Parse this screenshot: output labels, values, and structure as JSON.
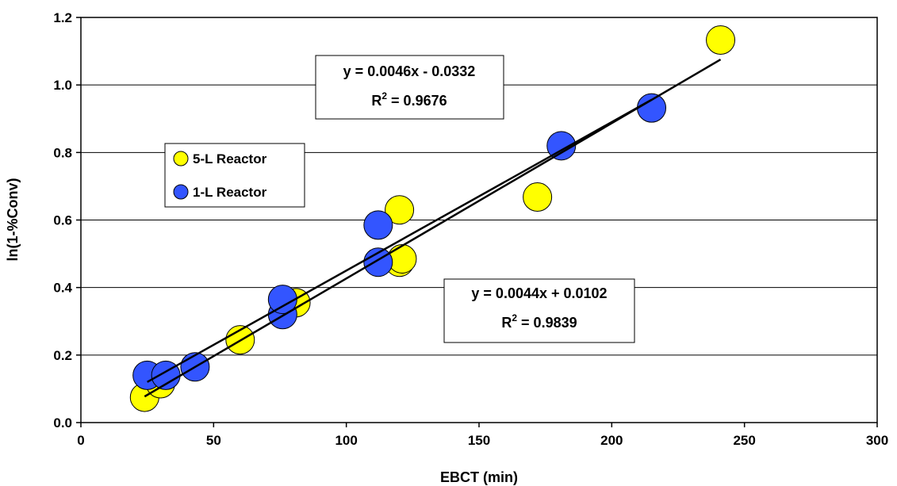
{
  "chart_data": {
    "type": "scatter",
    "xlabel": "EBCT (min)",
    "ylabel": "ln(1-%Conv)",
    "xlim": [
      0,
      300
    ],
    "ylim": [
      0.0,
      1.2
    ],
    "x_ticks": [
      "0",
      "50",
      "100",
      "150",
      "200",
      "250",
      "300"
    ],
    "y_ticks": [
      "0.0",
      "0.2",
      "0.4",
      "0.6",
      "0.8",
      "1.0",
      "1.2"
    ],
    "grid": "horizontal",
    "legend_position": "middle-left",
    "series": [
      {
        "name": "5-L Reactor",
        "color": "#ffff00",
        "x": [
          24,
          30,
          60,
          81,
          120,
          121,
          120,
          172,
          241
        ],
        "y": [
          0.075,
          0.115,
          0.245,
          0.355,
          0.475,
          0.485,
          0.63,
          0.668,
          1.133
        ]
      },
      {
        "name": "1-L Reactor",
        "color": "#3355ff",
        "x": [
          25,
          32,
          43,
          76,
          76,
          112,
          112,
          181,
          215
        ],
        "y": [
          0.14,
          0.14,
          0.165,
          0.32,
          0.365,
          0.475,
          0.585,
          0.82,
          0.932
        ]
      }
    ],
    "trendlines": [
      {
        "label": "5-L Reactor fit",
        "slope": 0.0046,
        "intercept": -0.0332,
        "x_range": [
          24,
          241
        ]
      },
      {
        "label": "1-L Reactor fit",
        "slope": 0.0044,
        "intercept": 0.0102,
        "x_range": [
          25,
          215
        ]
      }
    ],
    "annotations": {
      "eq_upper": "y = 0.0046x - 0.0332",
      "r2_upper_prefix": "R",
      "r2_upper_value": " = 0.9676",
      "eq_lower": "y = 0.0044x + 0.0102",
      "r2_lower_prefix": "R",
      "r2_lower_value": " = 0.9839",
      "superscript": "2"
    }
  }
}
